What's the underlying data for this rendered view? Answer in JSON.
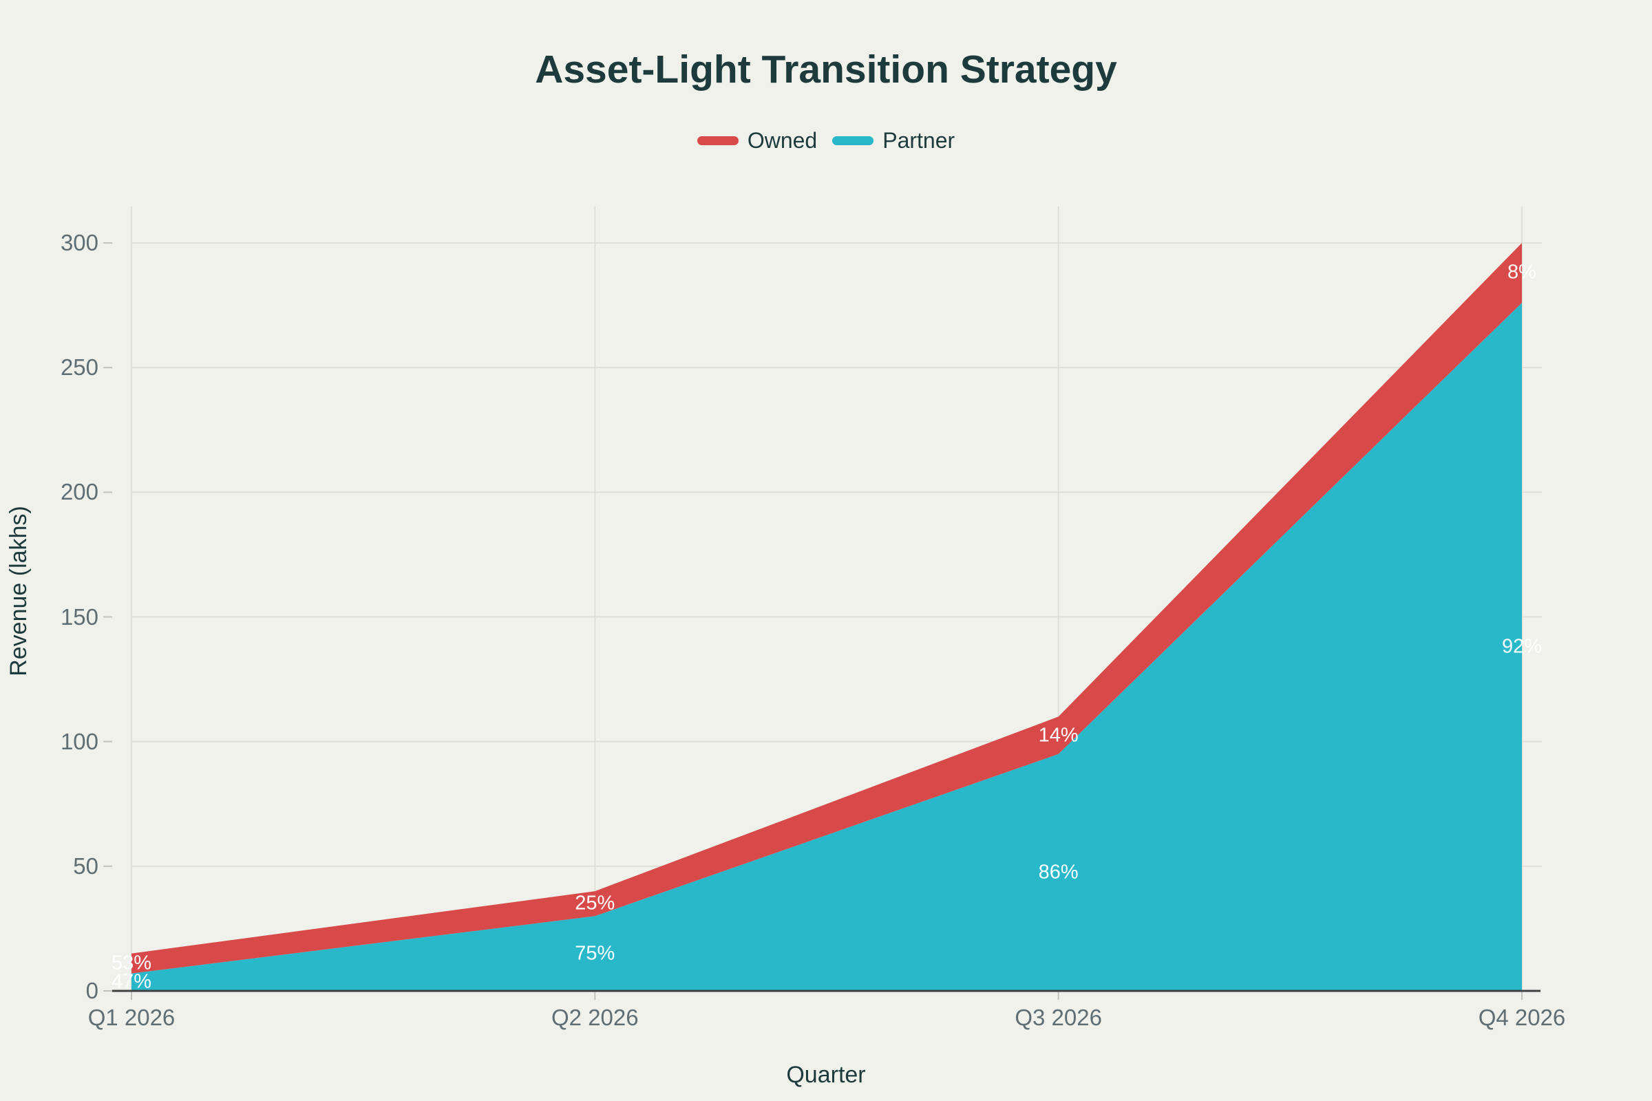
{
  "title": "Asset-Light Transition Strategy",
  "legend": [
    {
      "label": "Owned",
      "color": "#d8494a"
    },
    {
      "label": "Partner",
      "color": "#29b8ca"
    }
  ],
  "colors": {
    "background": "#f0f1ea",
    "heading_text": "#1d3a3c",
    "tick_text": "#5f6e74",
    "gridline": "#dcdcd4",
    "tick_mark": "#c2c2ba",
    "axis_line": "#404040",
    "data_label_text": "#ffffff"
  },
  "chart_data": {
    "type": "area",
    "stacked": true,
    "title": "Asset-Light Transition Strategy",
    "categories": [
      "Q1 2026",
      "Q2 2026",
      "Q3 2026",
      "Q4 2026"
    ],
    "series": [
      {
        "name": "Partner",
        "color": "#29b8ca",
        "values": [
          7,
          30,
          95,
          276
        ],
        "labels": [
          "47%",
          "75%",
          "86%",
          "92%"
        ]
      },
      {
        "name": "Owned",
        "color": "#d8494a",
        "values": [
          8,
          10,
          15,
          24
        ],
        "labels": [
          "53%",
          "25%",
          "14%",
          "8%"
        ]
      }
    ],
    "totals": [
      15,
      40,
      110,
      300
    ],
    "xlabel": "Quarter",
    "ylabel": "Revenue (lakhs)",
    "y_ticks": [
      0,
      50,
      100,
      150,
      200,
      250,
      300
    ],
    "ylim": [
      0,
      300
    ],
    "grid": true,
    "legend_position": "top-center"
  }
}
